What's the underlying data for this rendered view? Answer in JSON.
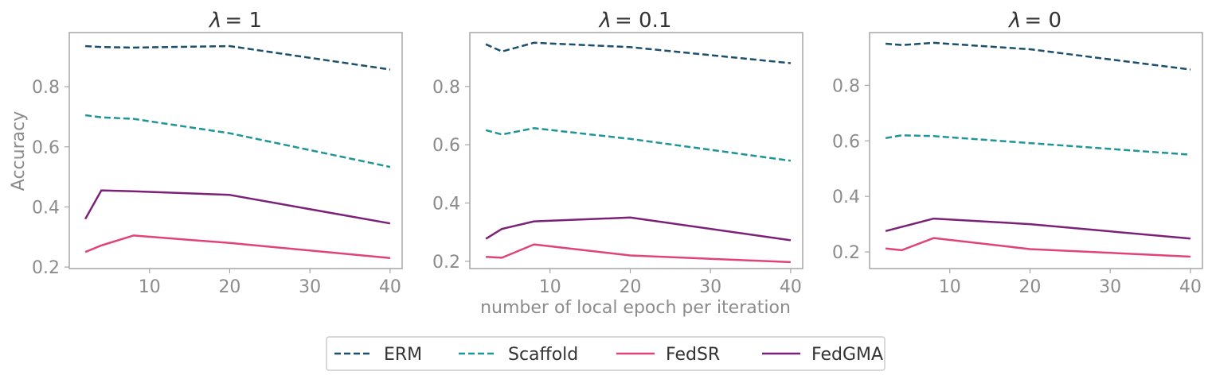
{
  "chart_data": {
    "type": "line",
    "shared": {
      "xlabel": "number of local epoch per iteration",
      "ylabel": "Accuracy",
      "x": [
        2,
        4,
        8,
        20,
        40
      ],
      "xlim": [
        0,
        41.5
      ],
      "xticks": [
        10,
        20,
        30,
        40
      ],
      "ylim": [
        0.195,
        0.98
      ],
      "yticks": [
        0.2,
        0.4,
        0.6,
        0.8
      ],
      "ytick_labels": [
        "0.2",
        "0.4",
        "0.6",
        "0.8"
      ]
    },
    "legend": {
      "position": "bottom-center",
      "entries": [
        {
          "name": "ERM",
          "color": "#1b4f6b",
          "dash": "dashed"
        },
        {
          "name": "Scaffold",
          "color": "#1e9596",
          "dash": "dashed"
        },
        {
          "name": "FedSR",
          "color": "#e0437a",
          "dash": "solid"
        },
        {
          "name": "FedGMA",
          "color": "#7b2178",
          "dash": "solid"
        }
      ]
    },
    "panels": [
      {
        "title_symbol": "λ",
        "title_value": "= 1",
        "ylim": [
          0.195,
          0.98
        ],
        "series": [
          {
            "name": "ERM",
            "values": [
              0.935,
              0.932,
              0.93,
              0.935,
              0.857
            ]
          },
          {
            "name": "Scaffold",
            "values": [
              0.705,
              0.698,
              0.693,
              0.645,
              0.533
            ]
          },
          {
            "name": "FedSR",
            "values": [
              0.25,
              0.272,
              0.305,
              0.28,
              0.23
            ]
          },
          {
            "name": "FedGMA",
            "values": [
              0.36,
              0.455,
              0.452,
              0.44,
              0.345
            ]
          }
        ]
      },
      {
        "title_symbol": "λ",
        "title_value": "= 0.1",
        "ylim": [
          0.175,
          0.985
        ],
        "series": [
          {
            "name": "ERM",
            "values": [
              0.945,
              0.92,
              0.95,
              0.935,
              0.88
            ]
          },
          {
            "name": "Scaffold",
            "values": [
              0.65,
              0.635,
              0.657,
              0.62,
              0.545
            ]
          },
          {
            "name": "FedSR",
            "values": [
              0.215,
              0.212,
              0.258,
              0.22,
              0.197
            ]
          },
          {
            "name": "FedGMA",
            "values": [
              0.277,
              0.311,
              0.337,
              0.35,
              0.272
            ]
          }
        ]
      },
      {
        "title_symbol": "λ",
        "title_value": "= 0",
        "ylim": [
          0.14,
          0.99
        ],
        "series": [
          {
            "name": "ERM",
            "values": [
              0.95,
              0.945,
              0.953,
              0.93,
              0.857
            ]
          },
          {
            "name": "Scaffold",
            "values": [
              0.61,
              0.62,
              0.617,
              0.592,
              0.55
            ]
          },
          {
            "name": "FedSR",
            "values": [
              0.212,
              0.206,
              0.25,
              0.21,
              0.183
            ]
          },
          {
            "name": "FedGMA",
            "values": [
              0.275,
              0.29,
              0.32,
              0.3,
              0.248
            ]
          }
        ]
      }
    ]
  }
}
